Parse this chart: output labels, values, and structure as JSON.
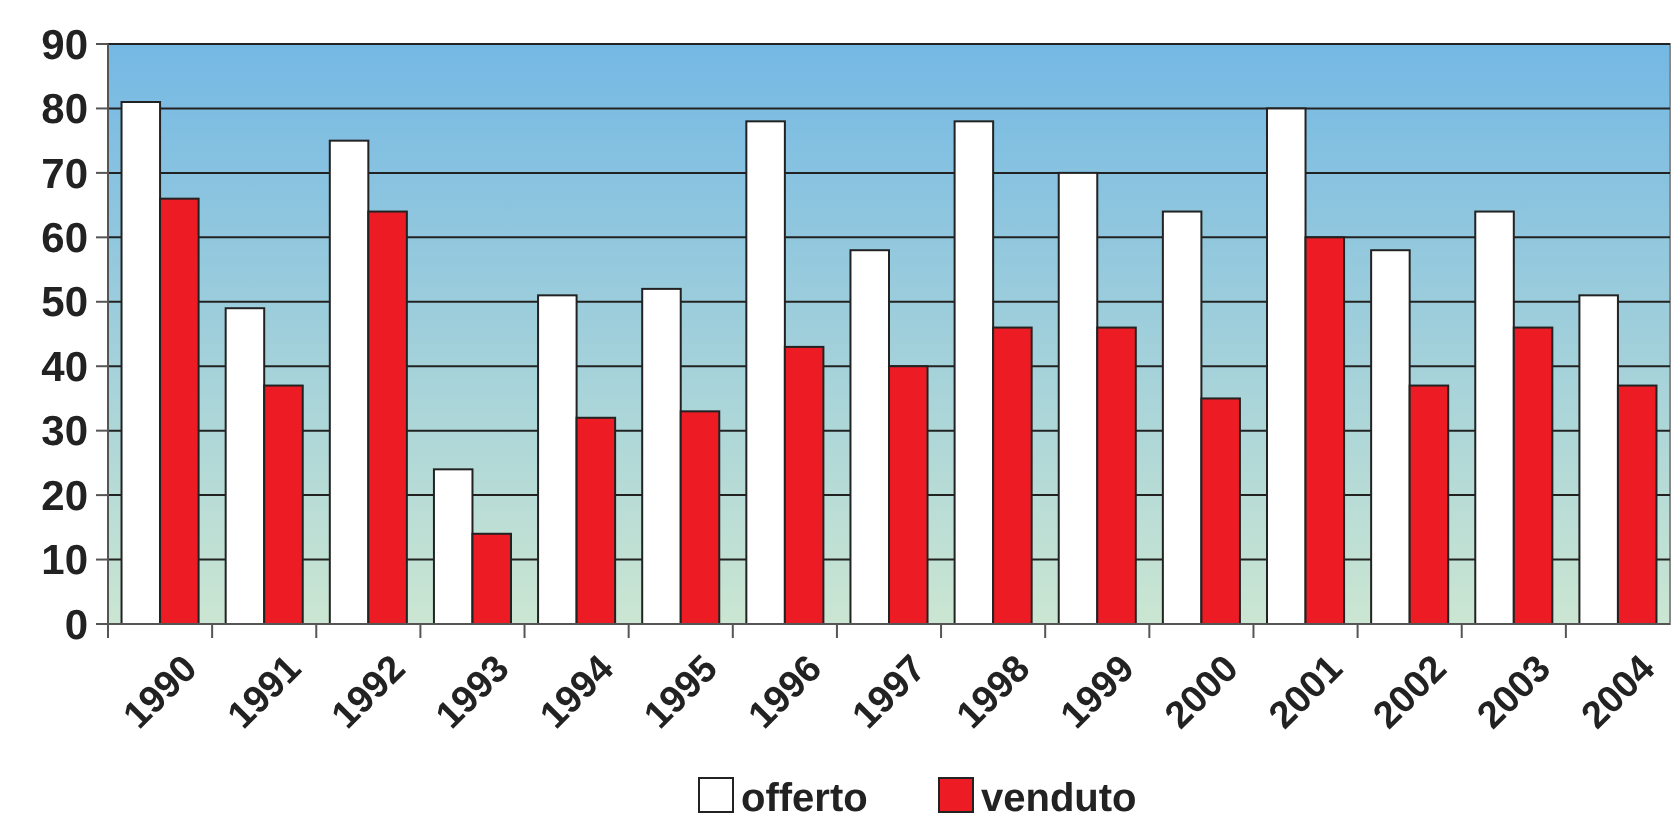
{
  "chart_data": {
    "type": "bar",
    "categories": [
      "1990",
      "1991",
      "1992",
      "1993",
      "1994",
      "1995",
      "1996",
      "1997",
      "1998",
      "1999",
      "2000",
      "2001",
      "2002",
      "2003",
      "2004"
    ],
    "series": [
      {
        "name": "offerto",
        "color": "#ffffff",
        "values": [
          81,
          49,
          75,
          24,
          51,
          52,
          78,
          58,
          78,
          70,
          64,
          80,
          58,
          64,
          51
        ]
      },
      {
        "name": "venduto",
        "color": "#ed1c24",
        "values": [
          66,
          37,
          64,
          14,
          32,
          33,
          43,
          40,
          46,
          46,
          35,
          60,
          37,
          46,
          37
        ]
      }
    ],
    "ylim": [
      0,
      90
    ],
    "yticks": [
      0,
      10,
      20,
      30,
      40,
      50,
      60,
      70,
      80,
      90
    ],
    "grid": "y",
    "legend": "bottom"
  }
}
